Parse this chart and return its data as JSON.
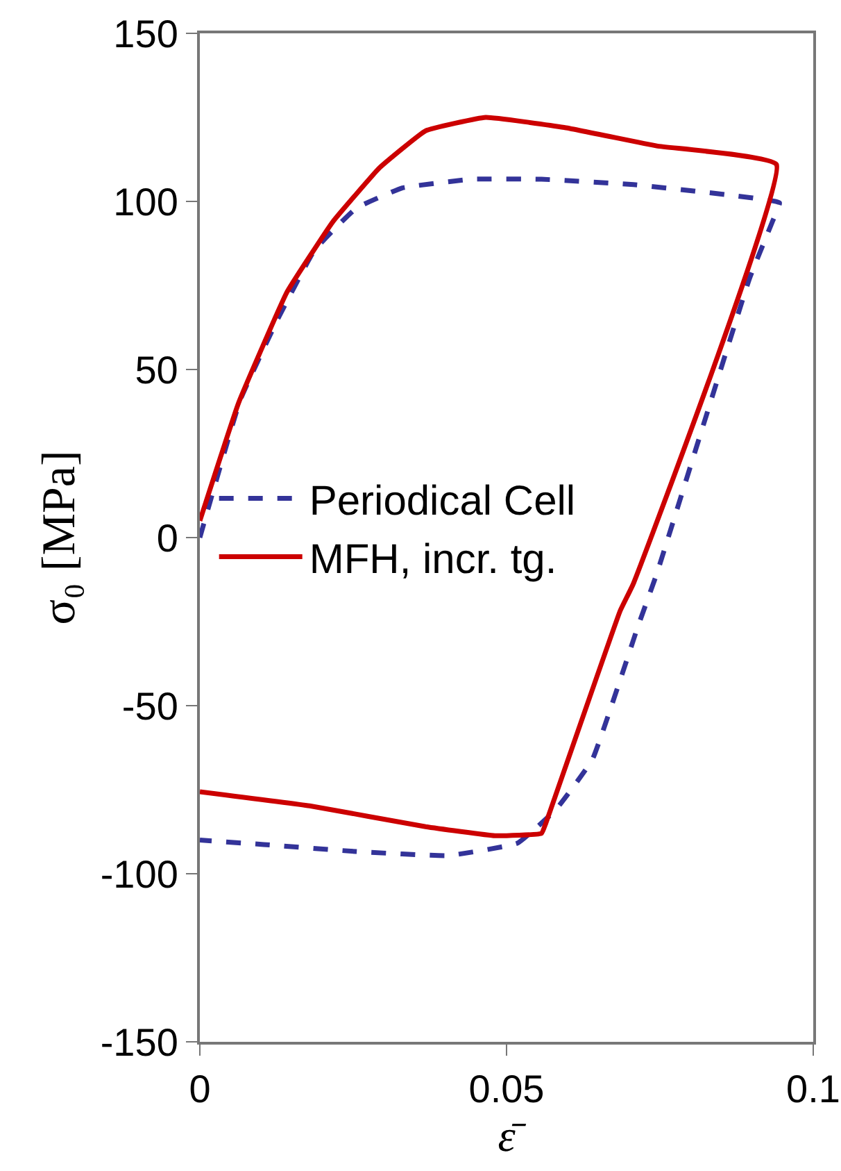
{
  "chart_data": {
    "type": "line",
    "xlabel": "ε̄",
    "ylabel": "σ₀ [MPa]",
    "xlim": [
      0,
      0.1
    ],
    "xticks": [
      0,
      0.05,
      0.1
    ],
    "ylim": [
      -150,
      150
    ],
    "yticks": [
      -150,
      -100,
      -50,
      0,
      50,
      100,
      150
    ],
    "grid": false,
    "legend": "left",
    "marker": "none",
    "series": [
      {
        "name": "Periodical Cell",
        "color": "#333399",
        "line_style": "dashed",
        "x": [
          0,
          0.0066,
          0.0127,
          0.0187,
          0.0255,
          0.033,
          0.0443,
          0.0557,
          0.0707,
          0.0858,
          0.0945,
          0.0933,
          0.0896,
          0.0745,
          0.0715,
          0.064,
          0.058,
          0.0518,
          0.0405,
          0.0255,
          0.0104,
          0
        ],
        "values": [
          0,
          41,
          65,
          85.5,
          98,
          104,
          106.6,
          106.6,
          105,
          102,
          99.6,
          93.8,
          77,
          -10.7,
          -26,
          -66,
          -81,
          -90.9,
          -94.6,
          -93.4,
          -91.3,
          -90
        ]
      },
      {
        "name": "MFH, incr. tg.",
        "color": "#cc0000",
        "line_style": "solid",
        "x": [
          0,
          0.0063,
          0.0142,
          0.0217,
          0.0293,
          0.0368,
          0.0466,
          0.0594,
          0.0745,
          0.094,
          0.0707,
          0.0685,
          0.0564,
          0.0557,
          0.0481,
          0.0368,
          0.0179,
          0
        ],
        "values": [
          5,
          40,
          73,
          94,
          110,
          121,
          125,
          122,
          116.5,
          111,
          -13.6,
          -21.9,
          -85,
          -88,
          -88.7,
          -86,
          -79.8,
          -75.6
        ]
      }
    ]
  }
}
